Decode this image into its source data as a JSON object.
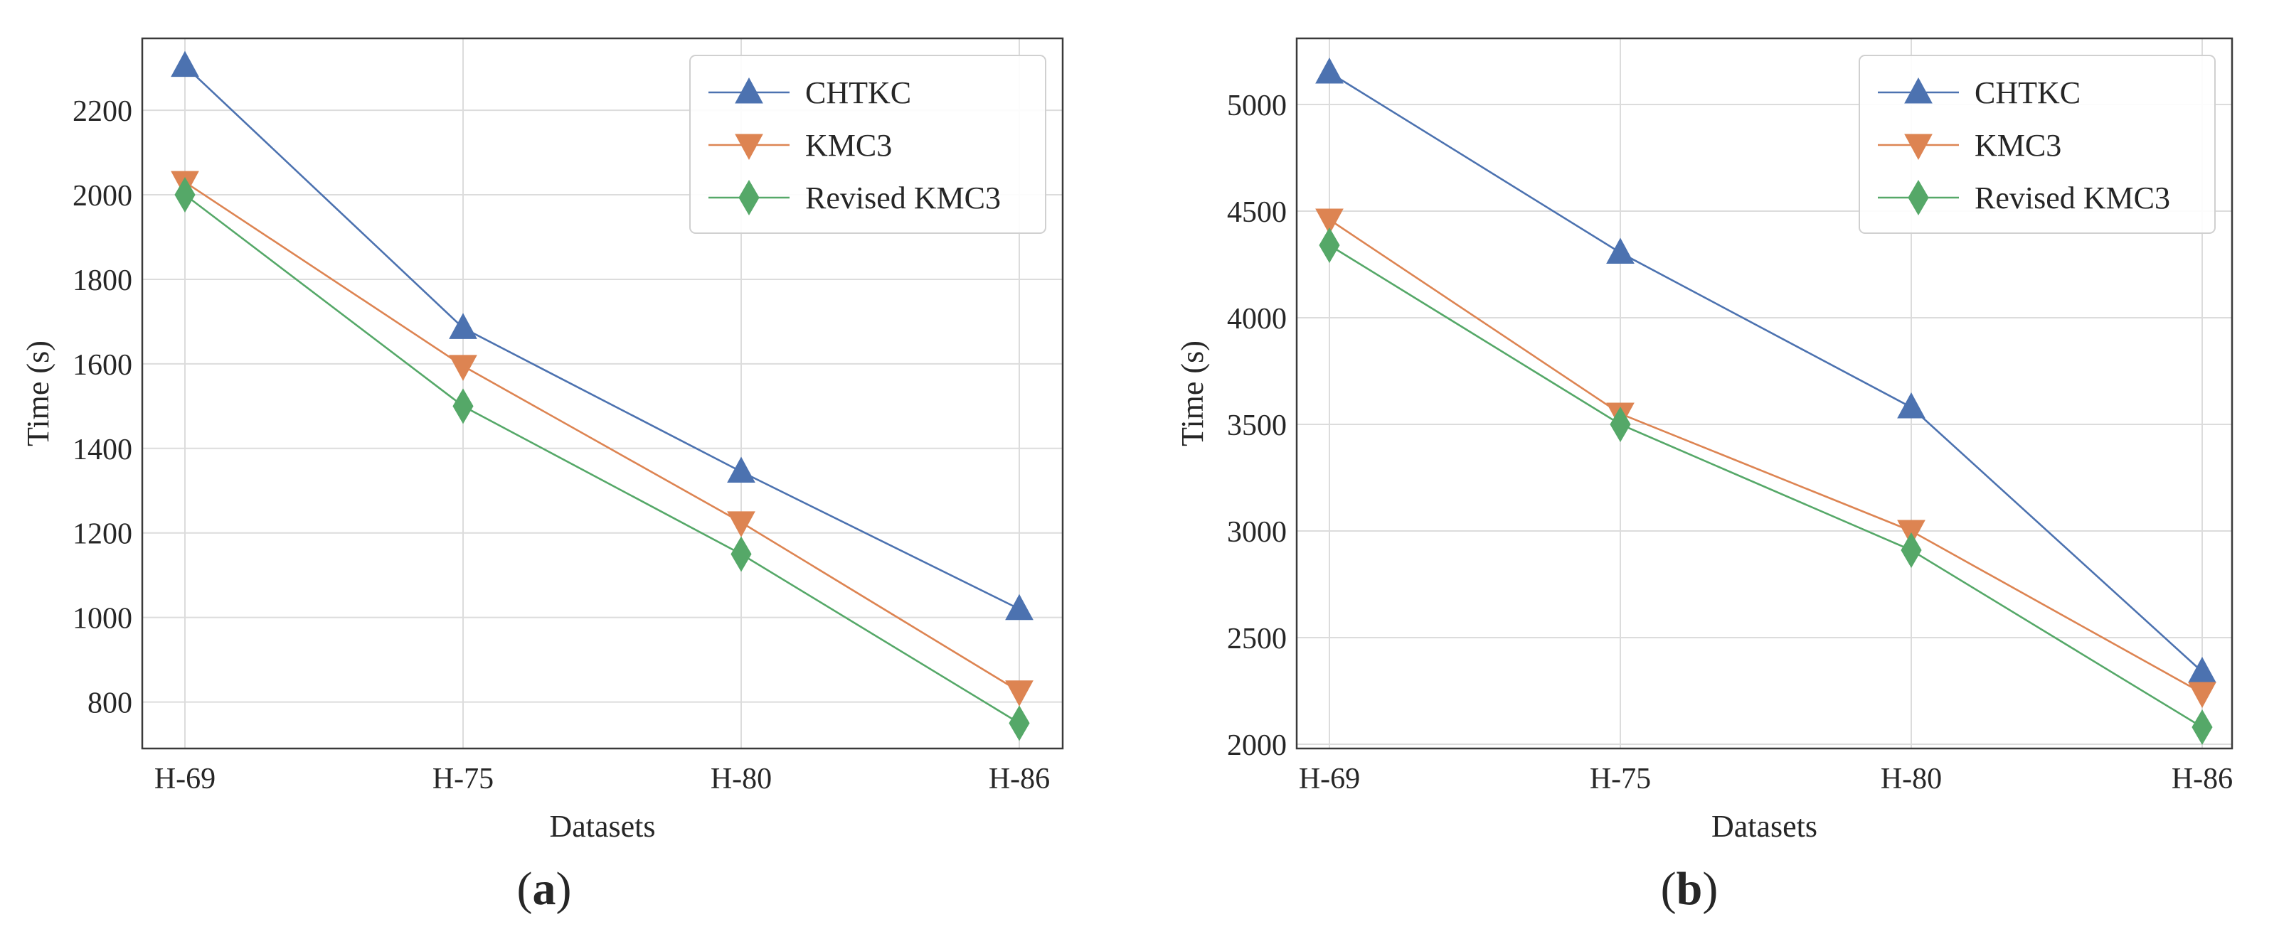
{
  "chart_data": [
    {
      "type": "line",
      "caption_letter": "a",
      "categories": [
        "H-69",
        "H-75",
        "H-80",
        "H-86"
      ],
      "xlabel": "Datasets",
      "ylabel": "Time (s)",
      "ylim": [
        690,
        2370
      ],
      "yticks": [
        800,
        1000,
        1200,
        1400,
        1600,
        1800,
        2000,
        2200
      ],
      "grid": true,
      "legend": "top-right",
      "series": [
        {
          "name": "CHTKC",
          "marker": "triangle-up",
          "color": "#4c72b0",
          "values": [
            2305,
            1685,
            1345,
            1020
          ]
        },
        {
          "name": "KMC3",
          "marker": "triangle-down",
          "color": "#dd8452",
          "values": [
            2030,
            1595,
            1225,
            825
          ]
        },
        {
          "name": "Revised KMC3",
          "marker": "diamond",
          "color": "#55a868",
          "values": [
            2000,
            1500,
            1150,
            750
          ]
        }
      ]
    },
    {
      "type": "line",
      "caption_letter": "b",
      "categories": [
        "H-69",
        "H-75",
        "H-80",
        "H-86"
      ],
      "xlabel": "Datasets",
      "ylabel": "Time (s)",
      "ylim": [
        1980,
        5310
      ],
      "yticks": [
        2000,
        2500,
        3000,
        3500,
        4000,
        4500,
        5000
      ],
      "grid": true,
      "legend": "top-right",
      "series": [
        {
          "name": "CHTKC",
          "marker": "triangle-up",
          "color": "#4c72b0",
          "values": [
            5150,
            4305,
            3580,
            2340
          ]
        },
        {
          "name": "KMC3",
          "marker": "triangle-down",
          "color": "#dd8452",
          "values": [
            4460,
            3550,
            3000,
            2240
          ]
        },
        {
          "name": "Revised KMC3",
          "marker": "diamond",
          "color": "#55a868",
          "values": [
            4340,
            3500,
            2910,
            2080
          ]
        }
      ]
    }
  ]
}
